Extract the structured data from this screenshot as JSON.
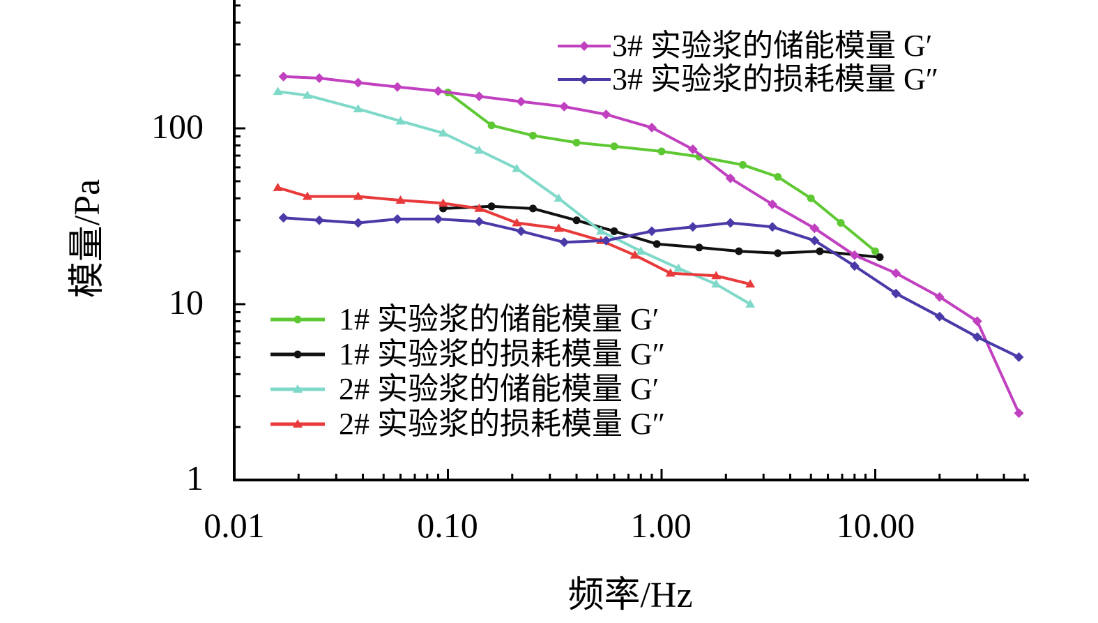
{
  "chart_data": {
    "type": "line",
    "xlabel": "频率/Hz",
    "ylabel": "模量/Pa",
    "x_scale": "log",
    "y_scale": "log",
    "xlim": [
      0.01,
      50
    ],
    "ylim": [
      1,
      1000
    ],
    "x_ticks": [
      "0.01",
      "0.10",
      "1.00",
      "10.00"
    ],
    "y_ticks": [
      "1",
      "10",
      "100"
    ],
    "grid": false,
    "series": [
      {
        "name": "1# 实验浆的储能模量 G′",
        "color": "#5dc832",
        "marker": "circle",
        "x": [
          0.1,
          0.16,
          0.25,
          0.4,
          0.6,
          1.0,
          1.5,
          2.4,
          3.5,
          5.0,
          6.9,
          10.0
        ],
        "y": [
          160,
          104,
          91,
          83,
          79,
          74,
          69,
          62,
          53,
          40,
          29,
          20
        ]
      },
      {
        "name": "1# 实验浆的损耗模量 G″",
        "color": "#111111",
        "marker": "circle",
        "x": [
          0.095,
          0.16,
          0.25,
          0.4,
          0.6,
          0.95,
          1.5,
          2.3,
          3.5,
          5.5,
          10.5
        ],
        "y": [
          35,
          36,
          35,
          30,
          26,
          22,
          21,
          20,
          19.5,
          20,
          18.5
        ]
      },
      {
        "name": "2# 实验浆的储能模量 G′",
        "color": "#7fd9c9",
        "marker": "triangle",
        "x": [
          0.016,
          0.022,
          0.038,
          0.06,
          0.095,
          0.14,
          0.21,
          0.33,
          0.52,
          0.8,
          1.2,
          1.8,
          2.6
        ],
        "y": [
          162,
          154,
          129,
          110,
          94,
          75,
          59,
          40,
          26,
          20,
          16,
          13,
          10
        ]
      },
      {
        "name": "2# 实验浆的损耗模量 G″",
        "color": "#e83a3a",
        "marker": "triangle",
        "x": [
          0.016,
          0.022,
          0.038,
          0.06,
          0.095,
          0.14,
          0.21,
          0.33,
          0.52,
          0.75,
          1.1,
          1.8,
          2.6
        ],
        "y": [
          46,
          41,
          41,
          39,
          37.5,
          35,
          29,
          27,
          23,
          19,
          15,
          14.5,
          13
        ]
      },
      {
        "name": "3# 实验浆的储能模量 G′",
        "color": "#c040c0",
        "marker": "diamond",
        "x": [
          0.017,
          0.025,
          0.038,
          0.058,
          0.09,
          0.14,
          0.22,
          0.35,
          0.55,
          0.9,
          1.4,
          2.1,
          3.3,
          5.2,
          8.0,
          12.5,
          20,
          30,
          47
        ],
        "y": [
          197,
          193,
          182,
          172,
          163,
          152,
          142,
          133,
          120,
          101,
          76,
          52,
          37,
          27,
          19,
          15,
          11,
          8,
          2.4
        ]
      },
      {
        "name": "3# 实验浆的损耗模量 G″",
        "color": "#4a3aa8",
        "marker": "diamond",
        "x": [
          0.017,
          0.025,
          0.038,
          0.058,
          0.09,
          0.14,
          0.22,
          0.35,
          0.55,
          0.9,
          1.4,
          2.1,
          3.3,
          5.2,
          8.0,
          12.5,
          20,
          30,
          47
        ],
        "y": [
          31,
          30,
          29,
          30.5,
          30.5,
          29.5,
          26,
          22.5,
          23,
          26,
          27.5,
          29,
          27.5,
          23,
          16.5,
          11.5,
          8.5,
          6.5,
          5
        ]
      }
    ],
    "legend_groups": {
      "top": [
        4,
        5
      ],
      "bottom": [
        0,
        1,
        2,
        3
      ]
    }
  }
}
